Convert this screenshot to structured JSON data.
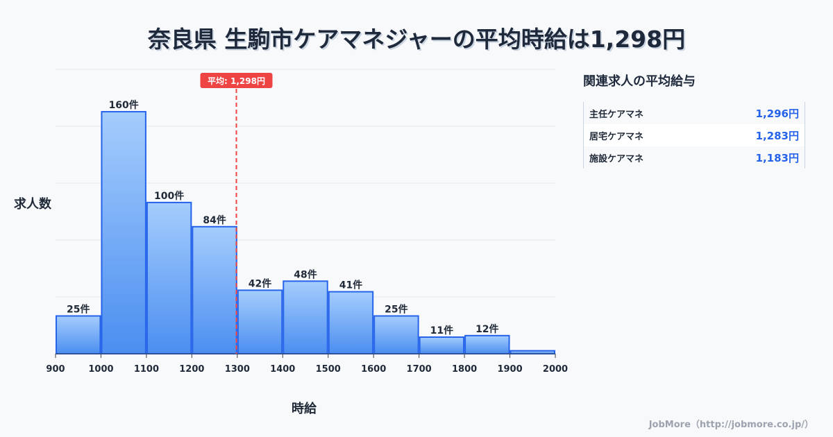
{
  "title": "奈良県 生駒市ケアマネジャーの平均時給は1,298円",
  "chart_data": {
    "type": "bar",
    "title": "奈良県 生駒市ケアマネジャーの平均時給は1,298円",
    "xlabel": "時給",
    "ylabel": "求人数",
    "bin_edges": [
      900,
      1000,
      1100,
      1200,
      1300,
      1400,
      1500,
      1600,
      1700,
      1800,
      1900,
      2000
    ],
    "values": [
      25,
      160,
      100,
      84,
      42,
      48,
      41,
      25,
      11,
      12,
      2
    ],
    "labels": [
      "25件",
      "160件",
      "100件",
      "84件",
      "42件",
      "48件",
      "41件",
      "25件",
      "11件",
      "12件",
      ""
    ],
    "xlim": [
      900,
      2000
    ],
    "ylim": [
      0,
      188
    ],
    "mean": 1298,
    "mean_label": "平均: 1,298円",
    "tick_labels": [
      "900",
      "1000",
      "1100",
      "1200",
      "1300",
      "1400",
      "1500",
      "1600",
      "1700",
      "1800",
      "1900",
      "2000"
    ],
    "grid": true
  },
  "panel": {
    "title": "関連求人の平均給与",
    "items": [
      {
        "name": "主任ケアマネ",
        "value": "1,296円"
      },
      {
        "name": "居宅ケアマネ",
        "value": "1,283円"
      },
      {
        "name": "施設ケアマネ",
        "value": "1,183円"
      }
    ]
  },
  "footer": "JobMore（http://jobmore.co.jp/）",
  "colors": {
    "bar_top": "#a5cdfd",
    "bar_bottom": "#4b8ef0",
    "bar_stroke": "#2563eb",
    "mean": "#ef4444"
  }
}
